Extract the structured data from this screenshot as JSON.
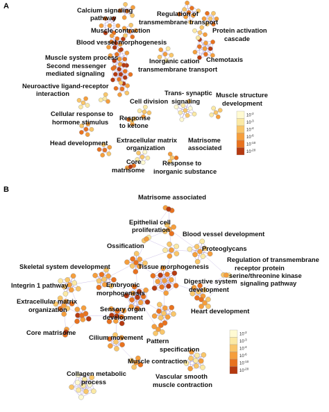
{
  "legend_colors": [
    "#fffad2",
    "#fbe9a4",
    "#f9c66a",
    "#f59e3c",
    "#e8721f",
    "#b53a11"
  ],
  "legend_levels": [
    "10-2",
    "10-3",
    "10-4",
    "10-6",
    "10-10",
    "10-20"
  ],
  "node_stroke": "#8a8a8a",
  "edge_color": "#8b73c9",
  "panels": [
    {
      "letter": "A",
      "terms": [
        "Calcium signaling pathway",
        "Regulation of transmembrane transport",
        "Muscle contraction",
        "Protein activation cascade",
        "Blood vessel morphogenesis",
        "Muscle system process",
        "Second messenger mediated signaling",
        "Chemotaxis",
        "Inorganic cation transmembrane transport",
        "Neuroactive ligand-receptor interaction",
        "Trans- synaptic signaling",
        "Muscle structure development",
        "Cell division",
        "Cellular response to hormone stimulus",
        "Response to ketone",
        "Head development",
        "Extracellular matrix organization",
        "Matrisome associated",
        "Core matrisome",
        "Response to inorganic substance"
      ]
    },
    {
      "letter": "B",
      "terms": [
        "Matrisome associated",
        "Epithelial cell proliferation",
        "Blood vessel development",
        "Ossification",
        "Proteoglycans",
        "Regulation of transmembrane receptor protein serine/threonine kinase signaling pathway",
        "Skeletal system development",
        "Tissue morphogenesis",
        "Integrin 1 pathway",
        "Embryonic morphogenesis",
        "Digestive system development",
        "Extracellular matrix organization",
        "Sensory organ development",
        "Heart development",
        "Core matrisome",
        "Cilium movement",
        "Pattern specification process",
        "Muscle contraction",
        "Collagen metabolic process",
        "Vascular smooth muscle contraction"
      ]
    }
  ]
}
